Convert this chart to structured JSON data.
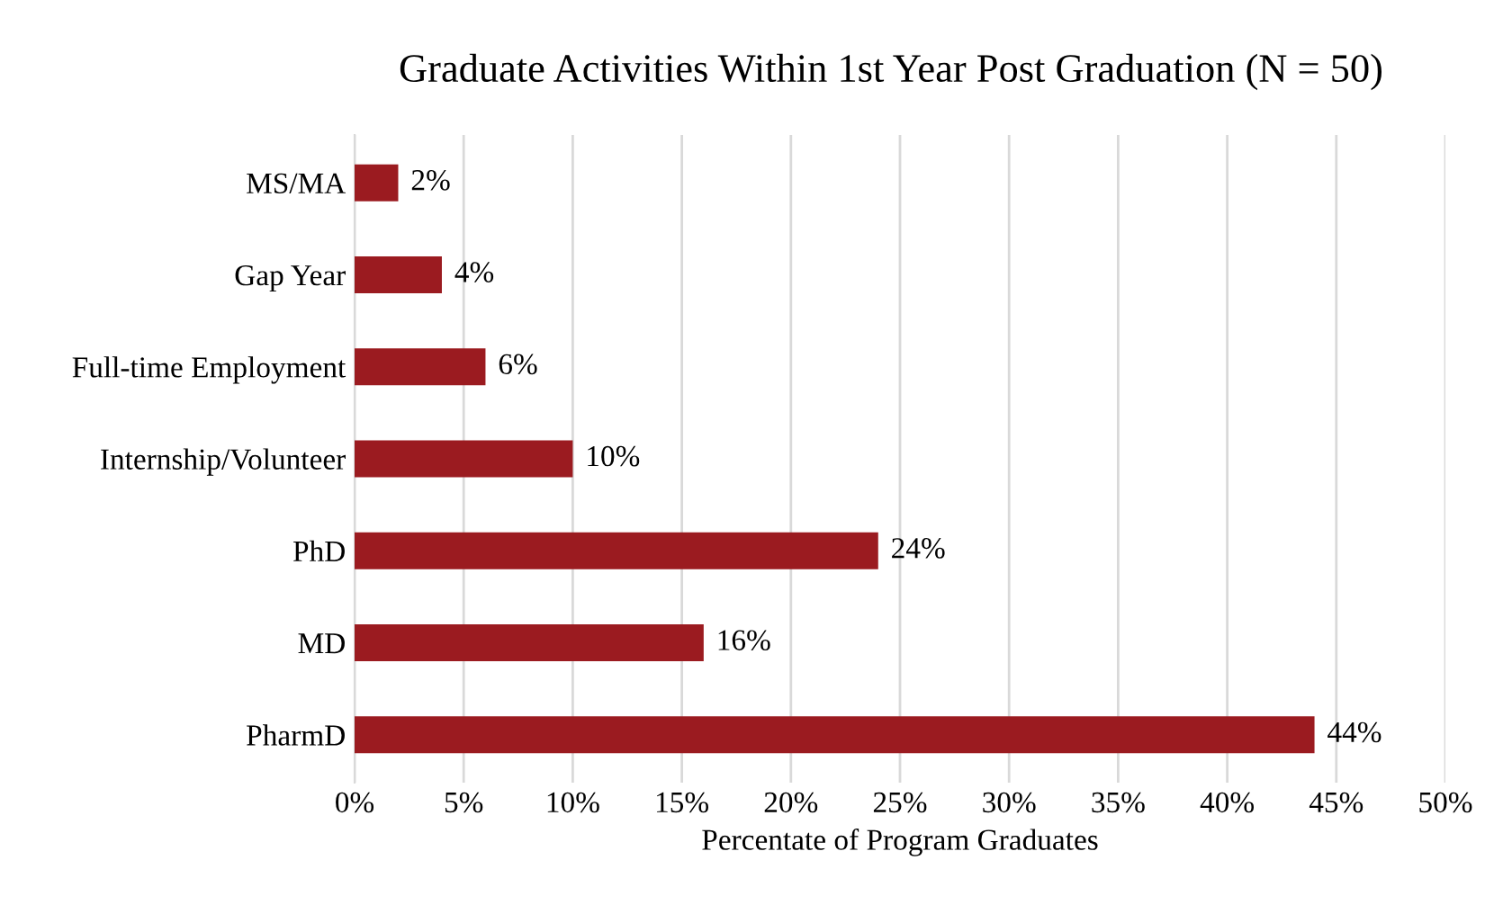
{
  "chart_data": {
    "type": "bar",
    "orientation": "horizontal",
    "title": "Graduate Activities Within 1st Year Post Graduation (N = 50)",
    "categories": [
      "MS/MA",
      "Gap Year",
      "Full-time Employment",
      "Internship/Volunteer",
      "PhD",
      "MD",
      "PharmD"
    ],
    "values": [
      2,
      4,
      6,
      10,
      24,
      16,
      44
    ],
    "value_labels": [
      "2%",
      "4%",
      "6%",
      "10%",
      "24%",
      "16%",
      "44%"
    ],
    "color": "#9b1b20",
    "xlabel": "Percentate of Program Graduates",
    "xlim": [
      0,
      50
    ],
    "xticks": [
      {
        "value": 0,
        "label": "0%"
      },
      {
        "value": 5,
        "label": "5%"
      },
      {
        "value": 10,
        "label": "10%"
      },
      {
        "value": 15,
        "label": "15%"
      },
      {
        "value": 20,
        "label": "20%"
      },
      {
        "value": 25,
        "label": "25%"
      },
      {
        "value": 30,
        "label": "30%"
      },
      {
        "value": 35,
        "label": "35%"
      },
      {
        "value": 40,
        "label": "40%"
      },
      {
        "value": 45,
        "label": "45%"
      },
      {
        "value": 50,
        "label": "50%"
      }
    ],
    "grid": "x",
    "legend": false
  }
}
